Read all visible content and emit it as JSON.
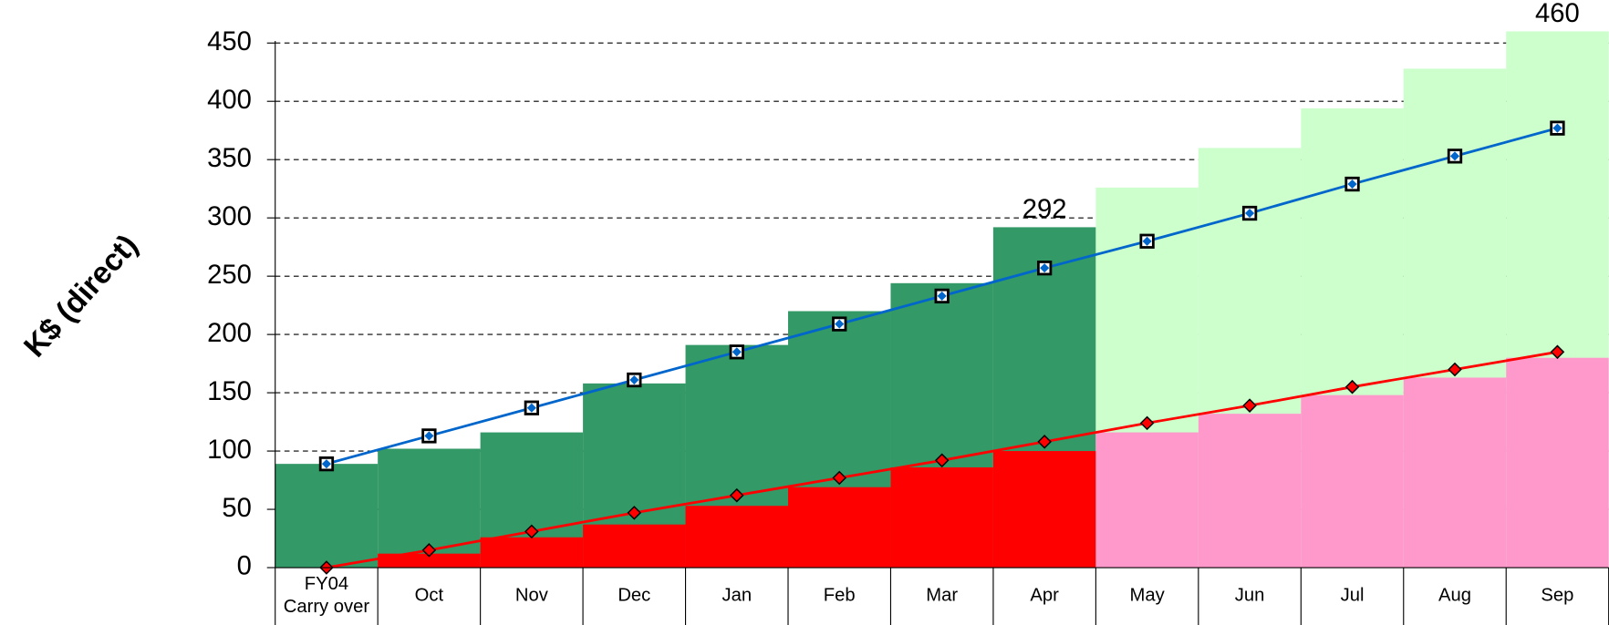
{
  "chart_data": {
    "type": "step-area-line",
    "y_label": "K$ (direct)",
    "categories": [
      "FY04\nCarry over",
      "Oct",
      "Nov",
      "Dec",
      "Jan",
      "Feb",
      "Mar",
      "Apr",
      "May",
      "Jun",
      "Jul",
      "Aug",
      "Sep"
    ],
    "ylim": [
      0,
      450
    ],
    "yticks": [
      0,
      50,
      100,
      150,
      200,
      250,
      300,
      350,
      400,
      450
    ],
    "grid": true,
    "series": [
      {
        "kind": "step",
        "color": "#339966",
        "values": [
          89,
          102,
          116,
          158,
          191,
          220,
          244,
          292,
          null,
          null,
          null,
          null,
          null
        ],
        "value_labels": [
          null,
          null,
          null,
          null,
          null,
          null,
          null,
          "292",
          null,
          null,
          null,
          null,
          null
        ]
      },
      {
        "kind": "step",
        "color": "#ccffcc",
        "values": [
          null,
          null,
          null,
          null,
          null,
          null,
          null,
          null,
          326,
          360,
          394,
          428,
          460
        ],
        "value_labels": [
          null,
          null,
          null,
          null,
          null,
          null,
          null,
          null,
          null,
          null,
          null,
          null,
          "460"
        ]
      },
      {
        "kind": "step",
        "color": "#ff0000",
        "values": [
          0,
          12,
          26,
          37,
          53,
          69,
          86,
          100,
          null,
          null,
          null,
          null,
          null
        ]
      },
      {
        "kind": "step",
        "color": "#ff99cc",
        "values": [
          null,
          null,
          null,
          null,
          null,
          null,
          null,
          null,
          116,
          132,
          148,
          163,
          180
        ]
      },
      {
        "kind": "line",
        "color": "#0066cc",
        "marker": "square",
        "values": [
          89,
          113,
          137,
          161,
          185,
          209,
          233,
          257,
          280,
          304,
          329,
          353,
          377
        ]
      },
      {
        "kind": "line",
        "color": "#ff0000",
        "marker": "diamond",
        "values": [
          0,
          15,
          31,
          47,
          62,
          77,
          92,
          108,
          124,
          139,
          155,
          170,
          185
        ]
      }
    ]
  }
}
